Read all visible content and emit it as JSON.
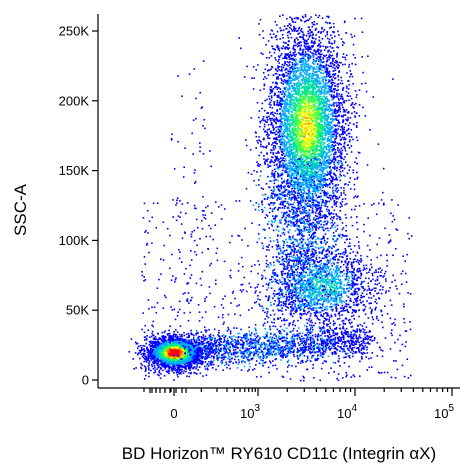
{
  "chart_data": {
    "type": "scatter",
    "plot_style": "flow cytometry density dot plot (pseudocolor)",
    "xlabel": "BD Horizon™ RY610 CD11c (Integrin αX)",
    "ylabel": "SSC-A",
    "x_scale": "biexponential",
    "x_ticks": [
      {
        "value": 0,
        "base": "0",
        "exp": ""
      },
      {
        "value": 1000,
        "base": "10",
        "exp": "3"
      },
      {
        "value": 10000,
        "base": "10",
        "exp": "4"
      },
      {
        "value": 100000,
        "base": "10",
        "exp": "5"
      }
    ],
    "y_scale": "linear",
    "ylim": [
      0,
      262144
    ],
    "y_ticks": [
      {
        "value": 0,
        "label": "0"
      },
      {
        "value": 50000,
        "label": "50K"
      },
      {
        "value": 100000,
        "label": "100K"
      },
      {
        "value": 150000,
        "label": "150K"
      },
      {
        "value": 200000,
        "label": "200K"
      },
      {
        "value": 250000,
        "label": "250K"
      }
    ],
    "density_colors": [
      "#0000ff",
      "#00a8ff",
      "#00e0a0",
      "#40ff40",
      "#ffff00",
      "#ff8000",
      "#ff0000"
    ],
    "populations": [
      {
        "x_center": 0,
        "y_center": 20000,
        "density": "highest"
      },
      {
        "x_center": 2800,
        "y_center": 175000,
        "density": "high"
      },
      {
        "x_center": 3200,
        "y_center": 75000,
        "density": "medium"
      },
      {
        "x_center": 1500,
        "y_center": 25000,
        "density": "low"
      }
    ]
  }
}
